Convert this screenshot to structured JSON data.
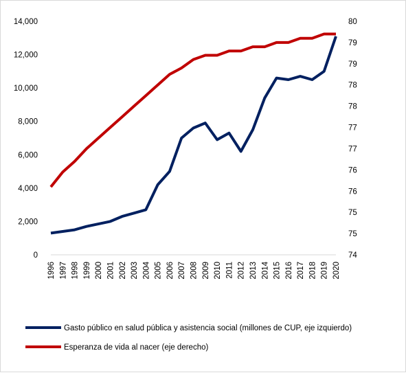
{
  "chart_data": {
    "type": "line",
    "title": "",
    "x": [
      "1996",
      "1997",
      "1998",
      "1999",
      "2000",
      "2001",
      "2002",
      "2003",
      "2004",
      "2005",
      "2006",
      "2007",
      "2008",
      "2009",
      "2010",
      "2011",
      "2012",
      "2013",
      "2014",
      "2015",
      "2016",
      "2017",
      "2018",
      "2019",
      "2020"
    ],
    "y_left": {
      "ticks": [
        "0",
        "2,000",
        "4,000",
        "6,000",
        "8,000",
        "10,000",
        "12,000",
        "14,000"
      ],
      "range": [
        0,
        14000
      ]
    },
    "y_right": {
      "ticks": [
        "74",
        "75",
        "75",
        "76",
        "76",
        "77",
        "77",
        "78",
        "78",
        "79",
        "79",
        "80"
      ],
      "range": [
        74,
        79.5
      ]
    },
    "grid": false,
    "legend_position": "bottom",
    "series": [
      {
        "name": "Gasto público en salud pública y asistencia social (millones de CUP, eje izquierdo)",
        "axis": "left",
        "color": "#002060",
        "values": [
          1300,
          1400,
          1500,
          1700,
          1850,
          2000,
          2300,
          2500,
          2700,
          4200,
          5000,
          7000,
          7600,
          7900,
          6900,
          7300,
          6200,
          7500,
          9400,
          10600,
          10500,
          10700,
          10500,
          11000,
          13100
        ]
      },
      {
        "name": "Esperanza de vida al nacer (eje derecho)",
        "axis": "right",
        "color": "#c00000",
        "values": [
          75.6,
          75.95,
          76.2,
          76.5,
          76.75,
          77.0,
          77.25,
          77.5,
          77.75,
          78.0,
          78.25,
          78.4,
          78.6,
          78.7,
          78.7,
          78.8,
          78.8,
          78.9,
          78.9,
          79.0,
          79.0,
          79.1,
          79.1,
          79.2,
          79.2
        ]
      }
    ]
  }
}
